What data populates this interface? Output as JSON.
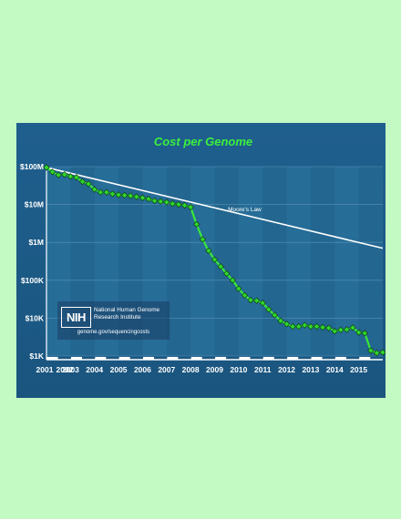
{
  "chart_data": {
    "type": "line",
    "title": "Cost per Genome",
    "y_scale": "log",
    "ylim": [
      1000,
      100000000
    ],
    "y_ticks": [
      {
        "value": 100000000,
        "label": "$100M"
      },
      {
        "value": 10000000,
        "label": "$10M"
      },
      {
        "value": 1000000,
        "label": "$1M"
      },
      {
        "value": 100000,
        "label": "$100K"
      },
      {
        "value": 10000,
        "label": "$10K"
      },
      {
        "value": 1000,
        "label": "$1K"
      }
    ],
    "xlim": [
      2001.75,
      2015.75
    ],
    "x_ticks": [
      "2001",
      "2002",
      "2003",
      "2004",
      "2005",
      "2006",
      "2007",
      "2008",
      "2009",
      "2010",
      "2011",
      "2012",
      "2013",
      "2014",
      "2015"
    ],
    "grid": true,
    "series": [
      {
        "name": "",
        "color": "#39e639",
        "x": [
          2001.75,
          2002.0,
          2002.25,
          2002.5,
          2002.75,
          2003.0,
          2003.25,
          2003.5,
          2003.75,
          2004.0,
          2004.25,
          2004.5,
          2004.75,
          2005.0,
          2005.25,
          2005.5,
          2005.75,
          2006.0,
          2006.25,
          2006.5,
          2006.75,
          2007.0,
          2007.25,
          2007.5,
          2007.75,
          2008.0,
          2008.25,
          2008.5,
          2008.75,
          2009.0,
          2009.25,
          2009.5,
          2009.75,
          2010.0,
          2010.25,
          2010.5,
          2010.75,
          2011.0,
          2011.25,
          2011.5,
          2011.75,
          2012.0,
          2012.25,
          2012.5,
          2012.75,
          2013.0,
          2013.25,
          2013.5,
          2013.75,
          2014.0,
          2014.25,
          2014.5,
          2014.75,
          2015.0,
          2015.25,
          2015.5,
          2015.75
        ],
        "y": [
          95000000,
          72000000,
          60000000,
          62000000,
          55000000,
          52000000,
          40000000,
          35000000,
          25000000,
          21000000,
          21000000,
          19000000,
          18000000,
          17500000,
          17000000,
          16000000,
          15000000,
          14000000,
          12500000,
          12000000,
          11500000,
          10500000,
          10000000,
          9500000,
          8500000,
          3000000,
          1200000,
          600000,
          350000,
          230000,
          150000,
          100000,
          60000,
          40000,
          30000,
          29000,
          25000,
          17000,
          12000,
          8500,
          7000,
          6000,
          6000,
          6500,
          6000,
          6000,
          5700,
          5500,
          4500,
          4900,
          5000,
          5600,
          4200,
          4000,
          1400,
          1200,
          1250
        ]
      },
      {
        "name": "Moore's Law",
        "color": "#ffffff",
        "x": [
          2001.75,
          2015.75
        ],
        "y": [
          95000000,
          700000
        ]
      }
    ]
  },
  "logo": {
    "mark": "NIH",
    "name": "National Human Genome Research Institute",
    "url": "genome.gov/sequencingcosts"
  }
}
